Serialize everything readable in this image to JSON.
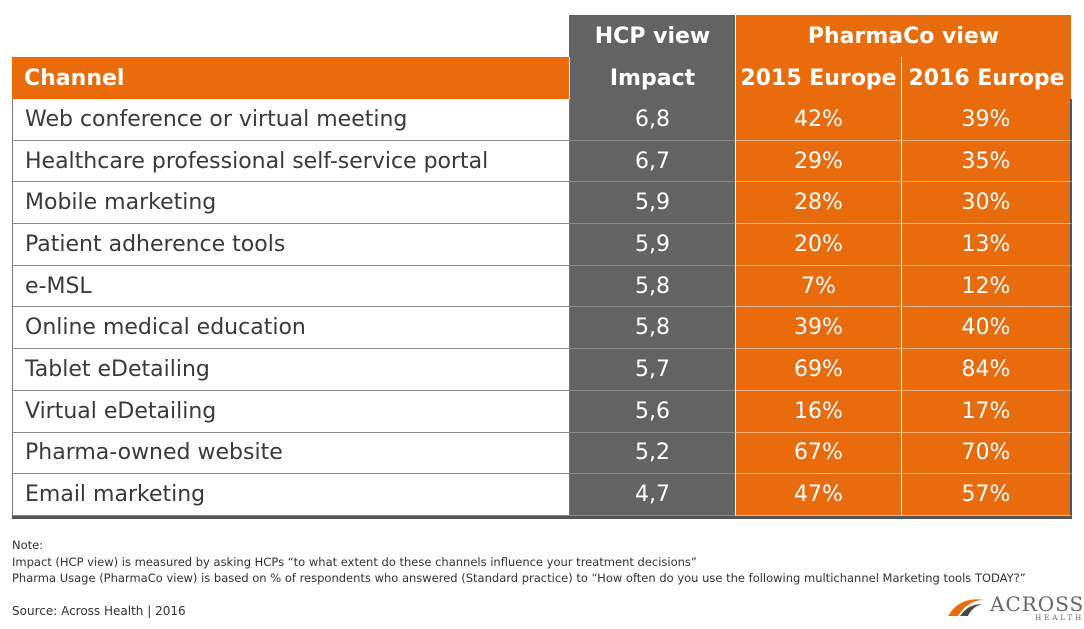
{
  "chart_data": {
    "type": "table",
    "group_headers": {
      "hcp": "HCP view",
      "pharma": "PharmaCo view"
    },
    "columns": [
      "Channel",
      "Impact",
      "2015 Europe",
      "2016 Europe"
    ],
    "rows": [
      [
        "Web conference or virtual meeting",
        "6,8",
        "42%",
        "39%"
      ],
      [
        "Healthcare professional self-service portal",
        "6,7",
        "29%",
        "35%"
      ],
      [
        "Mobile marketing",
        "5,9",
        "28%",
        "30%"
      ],
      [
        "Patient adherence tools",
        "5,9",
        "20%",
        "13%"
      ],
      [
        "e-MSL",
        "5,8",
        "7%",
        "12%"
      ],
      [
        "Online medical education",
        "5,8",
        "39%",
        "40%"
      ],
      [
        "Tablet eDetailing",
        "5,7",
        "69%",
        "84%"
      ],
      [
        "Virtual eDetailing",
        "5,6",
        "16%",
        "17%"
      ],
      [
        "Pharma-owned website",
        "5,2",
        "67%",
        "70%"
      ],
      [
        "Email marketing",
        "4,7",
        "47%",
        "57%"
      ]
    ]
  },
  "notes": {
    "heading": "Note:",
    "line1": "Impact (HCP view) is measured by asking HCPs “to what extent do these channels influence your treatment decisions”",
    "line2": "Pharma Usage (PharmaCo view) is based on % of respondents who answered (Standard practice) to “How often do you use the following multichannel Marketing tools TODAY?”"
  },
  "source": "Source: Across Health  |  2016",
  "logo": {
    "name": "ACROSS",
    "sub": "HEALTH"
  },
  "colors": {
    "orange": "#e96c0c",
    "gray": "#636363"
  }
}
